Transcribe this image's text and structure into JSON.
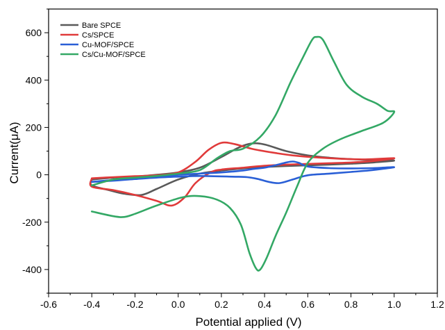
{
  "chart_data": {
    "type": "line",
    "title": "",
    "xlabel": "Potential applied (V)",
    "ylabel": "Current(μA)",
    "xlim": [
      -0.6,
      1.2
    ],
    "ylim": [
      -500,
      700
    ],
    "xticks": [
      -0.6,
      -0.4,
      -0.2,
      0.0,
      0.2,
      0.4,
      0.6,
      0.8,
      1.0,
      1.2
    ],
    "xtick_labels": [
      "-0.6",
      "-0.4",
      "-0.2",
      "0.0",
      "0.2",
      "0.4",
      "0.6",
      "0.8",
      "1.0",
      "1.2"
    ],
    "yticks": [
      -400,
      -200,
      0,
      200,
      400,
      600
    ],
    "ytick_labels": [
      "-400",
      "-200",
      "0",
      "200",
      "400",
      "600"
    ],
    "grid": false,
    "legend_position": "top-left",
    "series": [
      {
        "name": "Bare SPCE",
        "color": "#595959",
        "points": [
          [
            -0.4,
            -20
          ],
          [
            -0.3,
            -12
          ],
          [
            -0.2,
            -8
          ],
          [
            -0.1,
            0
          ],
          [
            0.0,
            10
          ],
          [
            0.1,
            30
          ],
          [
            0.2,
            75
          ],
          [
            0.28,
            115
          ],
          [
            0.34,
            132
          ],
          [
            0.4,
            128
          ],
          [
            0.5,
            100
          ],
          [
            0.6,
            82
          ],
          [
            0.7,
            72
          ],
          [
            0.8,
            66
          ],
          [
            0.9,
            62
          ],
          [
            1.0,
            60
          ],
          [
            0.9,
            52
          ],
          [
            0.8,
            47
          ],
          [
            0.7,
            43
          ],
          [
            0.6,
            40
          ],
          [
            0.5,
            37
          ],
          [
            0.4,
            33
          ],
          [
            0.3,
            27
          ],
          [
            0.2,
            18
          ],
          [
            0.1,
            5
          ],
          [
            0.0,
            -20
          ],
          [
            -0.1,
            -60
          ],
          [
            -0.17,
            -85
          ],
          [
            -0.25,
            -80
          ],
          [
            -0.32,
            -65
          ],
          [
            -0.4,
            -45
          ],
          [
            -0.4,
            -20
          ]
        ]
      },
      {
        "name": "Cs/SPCE",
        "color": "#e03a3a",
        "points": [
          [
            -0.4,
            -15
          ],
          [
            -0.3,
            -10
          ],
          [
            -0.2,
            -6
          ],
          [
            -0.1,
            -2
          ],
          [
            0.0,
            10
          ],
          [
            0.08,
            55
          ],
          [
            0.14,
            105
          ],
          [
            0.2,
            135
          ],
          [
            0.26,
            130
          ],
          [
            0.34,
            110
          ],
          [
            0.45,
            92
          ],
          [
            0.55,
            80
          ],
          [
            0.7,
            70
          ],
          [
            0.85,
            65
          ],
          [
            1.0,
            70
          ],
          [
            0.9,
            58
          ],
          [
            0.8,
            52
          ],
          [
            0.7,
            49
          ],
          [
            0.6,
            46
          ],
          [
            0.5,
            43
          ],
          [
            0.4,
            38
          ],
          [
            0.3,
            30
          ],
          [
            0.2,
            22
          ],
          [
            0.15,
            10
          ],
          [
            0.08,
            -35
          ],
          [
            0.03,
            -95
          ],
          [
            -0.03,
            -130
          ],
          [
            -0.1,
            -110
          ],
          [
            -0.2,
            -85
          ],
          [
            -0.3,
            -65
          ],
          [
            -0.4,
            -50
          ],
          [
            -0.4,
            -15
          ]
        ]
      },
      {
        "name": "Cu-MOF/SPCE",
        "color": "#2a5fd6",
        "points": [
          [
            -0.4,
            -30
          ],
          [
            -0.3,
            -22
          ],
          [
            -0.2,
            -15
          ],
          [
            -0.1,
            -8
          ],
          [
            0.0,
            0
          ],
          [
            0.1,
            5
          ],
          [
            0.2,
            10
          ],
          [
            0.3,
            18
          ],
          [
            0.35,
            25
          ],
          [
            0.4,
            30
          ],
          [
            0.45,
            40
          ],
          [
            0.5,
            52
          ],
          [
            0.53,
            56
          ],
          [
            0.56,
            50
          ],
          [
            0.6,
            35
          ],
          [
            0.7,
            28
          ],
          [
            0.8,
            27
          ],
          [
            0.9,
            28
          ],
          [
            1.0,
            32
          ],
          [
            0.9,
            20
          ],
          [
            0.8,
            12
          ],
          [
            0.7,
            5
          ],
          [
            0.6,
            -2
          ],
          [
            0.53,
            -20
          ],
          [
            0.47,
            -35
          ],
          [
            0.42,
            -30
          ],
          [
            0.37,
            -18
          ],
          [
            0.32,
            -10
          ],
          [
            0.25,
            -8
          ],
          [
            0.1,
            -5
          ],
          [
            0.0,
            -8
          ],
          [
            -0.1,
            -12
          ],
          [
            -0.2,
            -18
          ],
          [
            -0.3,
            -25
          ],
          [
            -0.4,
            -30
          ]
        ]
      },
      {
        "name": "Cs/Cu-MOF/SPCE",
        "color": "#33a865",
        "points": [
          [
            -0.4,
            -45
          ],
          [
            -0.3,
            -20
          ],
          [
            -0.2,
            -12
          ],
          [
            -0.1,
            -5
          ],
          [
            0.0,
            5
          ],
          [
            0.1,
            20
          ],
          [
            0.18,
            70
          ],
          [
            0.24,
            100
          ],
          [
            0.3,
            110
          ],
          [
            0.38,
            160
          ],
          [
            0.45,
            250
          ],
          [
            0.52,
            390
          ],
          [
            0.58,
            500
          ],
          [
            0.62,
            570
          ],
          [
            0.64,
            582
          ],
          [
            0.67,
            570
          ],
          [
            0.72,
            480
          ],
          [
            0.78,
            380
          ],
          [
            0.85,
            330
          ],
          [
            0.92,
            300
          ],
          [
            0.97,
            270
          ],
          [
            1.0,
            265
          ],
          [
            0.95,
            220
          ],
          [
            0.85,
            185
          ],
          [
            0.75,
            150
          ],
          [
            0.67,
            110
          ],
          [
            0.6,
            50
          ],
          [
            0.55,
            -50
          ],
          [
            0.5,
            -160
          ],
          [
            0.45,
            -260
          ],
          [
            0.41,
            -350
          ],
          [
            0.38,
            -400
          ],
          [
            0.36,
            -395
          ],
          [
            0.33,
            -330
          ],
          [
            0.29,
            -210
          ],
          [
            0.24,
            -140
          ],
          [
            0.18,
            -105
          ],
          [
            0.1,
            -90
          ],
          [
            0.02,
            -95
          ],
          [
            -0.1,
            -130
          ],
          [
            -0.2,
            -165
          ],
          [
            -0.25,
            -178
          ],
          [
            -0.3,
            -175
          ],
          [
            -0.4,
            -155
          ]
        ]
      }
    ]
  }
}
